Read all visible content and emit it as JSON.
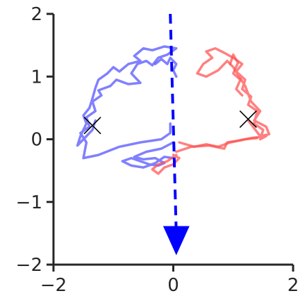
{
  "chart_data": {
    "type": "line",
    "title": "",
    "xlabel": "",
    "ylabel": "",
    "xlim": [
      -2,
      2
    ],
    "ylim": [
      -2,
      2
    ],
    "grid": false,
    "legend": "none",
    "xticks": [
      {
        "value": -2,
        "label": "−2"
      },
      {
        "value": 0,
        "label": "0"
      },
      {
        "value": 2,
        "label": "2"
      }
    ],
    "yticks": [
      {
        "value": -2,
        "label": "−2"
      },
      {
        "value": -1,
        "label": "−1"
      },
      {
        "value": 0,
        "label": "0"
      },
      {
        "value": 1,
        "label": "1"
      },
      {
        "value": 2,
        "label": "2"
      }
    ],
    "series": [
      {
        "color": "#5555ff",
        "points": [
          [
            -0.05,
            0.25
          ],
          [
            -0.05,
            0.1
          ],
          [
            -0.2,
            0.0
          ],
          [
            -0.55,
            -0.05
          ],
          [
            -0.9,
            -0.12
          ],
          [
            -1.25,
            -0.25
          ],
          [
            -1.5,
            -0.3
          ],
          [
            -1.45,
            -0.05
          ],
          [
            -1.55,
            0.1
          ],
          [
            -1.4,
            0.2
          ],
          [
            -1.45,
            0.35
          ],
          [
            -1.3,
            0.45
          ],
          [
            -1.35,
            0.6
          ],
          [
            -1.2,
            0.7
          ],
          [
            -1.25,
            0.78
          ],
          [
            -1.05,
            0.85
          ],
          [
            -0.95,
            0.95
          ],
          [
            -0.75,
            0.88
          ],
          [
            -0.55,
            0.9
          ],
          [
            -0.7,
            1.05
          ],
          [
            -0.6,
            1.2
          ],
          [
            -0.45,
            1.25
          ],
          [
            -0.35,
            1.18
          ],
          [
            -0.25,
            1.3
          ],
          [
            -0.1,
            1.35
          ],
          [
            0.05,
            1.45
          ],
          [
            -0.15,
            1.48
          ],
          [
            -0.35,
            1.42
          ],
          [
            -0.5,
            1.45
          ],
          [
            -0.65,
            1.33
          ],
          [
            -0.55,
            1.25
          ],
          [
            -0.75,
            1.2
          ],
          [
            -0.9,
            1.08
          ],
          [
            -1.0,
            1.15
          ],
          [
            -1.1,
            1.05
          ],
          [
            -1.25,
            0.95
          ],
          [
            -1.3,
            0.82
          ],
          [
            -1.35,
            0.65
          ],
          [
            -1.4,
            0.5
          ],
          [
            -1.5,
            0.38
          ],
          [
            -1.45,
            0.25
          ],
          [
            -1.55,
            0.05
          ],
          [
            -1.6,
            -0.1
          ],
          [
            -1.35,
            0.15
          ],
          [
            -1.3,
            0.3
          ]
        ]
      },
      {
        "color": "#5555ff",
        "points": [
          [
            0.0,
            -0.05
          ],
          [
            -0.2,
            -0.15
          ],
          [
            -0.45,
            -0.2
          ],
          [
            -0.65,
            -0.28
          ],
          [
            -0.5,
            -0.32
          ],
          [
            -0.3,
            -0.3
          ],
          [
            -0.15,
            -0.38
          ],
          [
            -0.25,
            -0.42
          ],
          [
            -0.4,
            -0.4
          ],
          [
            -0.55,
            -0.35
          ],
          [
            -0.7,
            -0.3
          ],
          [
            -0.85,
            -0.35
          ],
          [
            -0.7,
            -0.42
          ],
          [
            -0.5,
            -0.45
          ],
          [
            -0.3,
            -0.38
          ],
          [
            -0.15,
            -0.28
          ],
          [
            0.0,
            -0.3
          ]
        ]
      },
      {
        "color": "#5555ff",
        "points": [
          [
            -0.3,
            1.2
          ],
          [
            -0.2,
            1.28
          ],
          [
            -0.1,
            1.2
          ],
          [
            -0.05,
            1.3
          ],
          [
            0.05,
            1.2
          ],
          [
            0.0,
            1.1
          ],
          [
            0.05,
            1.0
          ]
        ]
      },
      {
        "color": "#ff5555",
        "points": [
          [
            0.05,
            -0.2
          ],
          [
            0.3,
            -0.12
          ],
          [
            0.6,
            -0.1
          ],
          [
            0.85,
            -0.15
          ],
          [
            0.9,
            -0.05
          ],
          [
            1.1,
            -0.02
          ],
          [
            1.3,
            0.02
          ],
          [
            1.55,
            0.05
          ],
          [
            1.45,
            0.0
          ],
          [
            1.5,
            0.15
          ],
          [
            1.35,
            0.25
          ],
          [
            1.4,
            0.45
          ],
          [
            1.25,
            0.55
          ],
          [
            1.3,
            0.68
          ],
          [
            1.15,
            0.8
          ],
          [
            1.2,
            0.95
          ],
          [
            1.05,
            1.08
          ],
          [
            1.15,
            1.2
          ],
          [
            1.0,
            1.3
          ],
          [
            0.85,
            1.38
          ],
          [
            0.7,
            1.45
          ],
          [
            0.55,
            1.4
          ],
          [
            0.65,
            1.3
          ],
          [
            0.5,
            1.2
          ],
          [
            0.4,
            1.05
          ],
          [
            0.55,
            1.0
          ],
          [
            0.75,
            1.1
          ],
          [
            0.9,
            1.25
          ],
          [
            1.0,
            1.15
          ],
          [
            1.1,
            1.0
          ],
          [
            1.2,
            0.85
          ],
          [
            1.3,
            0.6
          ],
          [
            1.45,
            0.45
          ],
          [
            1.35,
            0.3
          ],
          [
            1.55,
            0.2
          ],
          [
            1.6,
            0.08
          ],
          [
            1.45,
            0.05
          ],
          [
            1.25,
            0.3
          ]
        ]
      },
      {
        "color": "#ff5555",
        "points": [
          [
            0.05,
            -0.25
          ],
          [
            -0.1,
            -0.35
          ],
          [
            -0.25,
            -0.4
          ],
          [
            -0.35,
            -0.48
          ],
          [
            -0.25,
            -0.55
          ],
          [
            -0.15,
            -0.45
          ],
          [
            0.0,
            -0.4
          ],
          [
            0.1,
            -0.3
          ],
          [
            0.0,
            -0.25
          ]
        ]
      },
      {
        "color": "#ff5555",
        "points": [
          [
            0.1,
            -0.05
          ],
          [
            0.35,
            -0.12
          ],
          [
            0.55,
            -0.08
          ],
          [
            0.75,
            -0.12
          ],
          [
            0.95,
            -0.05
          ],
          [
            1.2,
            0.0
          ],
          [
            1.4,
            0.02
          ]
        ]
      },
      {
        "color": "#ff5555",
        "points": [
          [
            0.95,
            1.2
          ],
          [
            1.0,
            1.35
          ],
          [
            1.08,
            1.22
          ],
          [
            1.0,
            1.05
          ],
          [
            1.12,
            0.95
          ],
          [
            1.05,
            0.8
          ],
          [
            1.15,
            0.7
          ]
        ]
      }
    ],
    "arrow": {
      "color": "#0000ff",
      "from": [
        -0.05,
        2.0
      ],
      "to": [
        0.05,
        -1.85
      ]
    },
    "markers": [
      {
        "x": -1.35,
        "y": 0.22,
        "symbol": "x"
      },
      {
        "x": 1.25,
        "y": 0.32,
        "symbol": "x"
      }
    ]
  }
}
